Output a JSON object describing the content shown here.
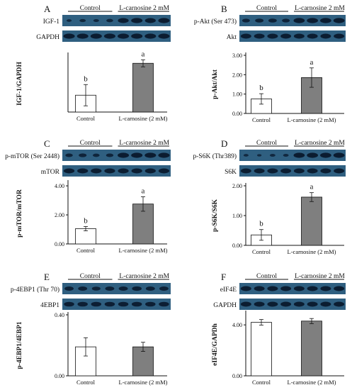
{
  "figure": {
    "group_labels": [
      "Control",
      "L-carnosine 2 mM"
    ],
    "colors": {
      "control_bar": "#ffffff",
      "treatment_bar": "#7f7f7f",
      "blot_bg": "#2f5f80",
      "blot_band": "#0b1c30"
    }
  },
  "panels": [
    {
      "letter": "A",
      "target_label": "IGF-1",
      "reference_label": "GAPDH"
    },
    {
      "letter": "B",
      "target_label": "p-Akt (Ser 473)",
      "reference_label": "Akt"
    },
    {
      "letter": "C",
      "target_label": "p-mTOR (Ser 2448)",
      "reference_label": "mTOR"
    },
    {
      "letter": "D",
      "target_label": "p-S6K (Thr389)",
      "reference_label": "S6K"
    },
    {
      "letter": "E",
      "target_label": "p-4EBP1 (Thr 70)",
      "reference_label": "4EBP1"
    },
    {
      "letter": "F",
      "target_label": "eIF4E",
      "reference_label": "GAPDH"
    }
  ],
  "chart_data": [
    {
      "panel": "A",
      "type": "bar",
      "categories": [
        "Control",
        "L-carnosine (2 mM)"
      ],
      "values": [
        0.95,
        2.75
      ],
      "errors": [
        0.6,
        0.2
      ],
      "significance": [
        "b",
        "a"
      ],
      "ylabel": "IGF-1/GAPDH",
      "ylim": [
        0,
        3.2
      ],
      "yticks": [],
      "ytick_labels": []
    },
    {
      "panel": "B",
      "type": "bar",
      "categories": [
        "Control",
        "L-carnosine (2 mM)"
      ],
      "values": [
        0.75,
        1.85
      ],
      "errors": [
        0.27,
        0.5
      ],
      "significance": [
        "b",
        "a"
      ],
      "ylabel": "p-Akt/Akt",
      "ylim": [
        0,
        3.0
      ],
      "yticks": [
        0,
        1,
        2,
        3
      ],
      "ytick_labels": [
        "0.00",
        "1.00",
        "2.00",
        "3.00"
      ]
    },
    {
      "panel": "C",
      "type": "bar",
      "categories": [
        "Control",
        "L-carnosine (2 mM)"
      ],
      "values": [
        1.05,
        2.75
      ],
      "errors": [
        0.15,
        0.5
      ],
      "significance": [
        "b",
        "a"
      ],
      "ylabel": "p-mTOR/mTOR",
      "ylim": [
        0,
        4.2
      ],
      "yticks": [
        0,
        2,
        4
      ],
      "ytick_labels": [
        "0.00",
        "2.00",
        "4.00"
      ]
    },
    {
      "panel": "D",
      "type": "bar",
      "categories": [
        "Control",
        "L-carnosine (2 mM)"
      ],
      "values": [
        0.35,
        1.62
      ],
      "errors": [
        0.18,
        0.15
      ],
      "significance": [
        "b",
        "a"
      ],
      "ylabel": "p-S6K/S6K",
      "ylim": [
        0,
        2.0
      ],
      "yticks": [
        0,
        1,
        2
      ],
      "ytick_labels": [
        "0.00",
        "1.00",
        "2.00"
      ]
    },
    {
      "panel": "E",
      "type": "bar",
      "categories": [
        "Control",
        "L-carnosine (2 mM)"
      ],
      "values": [
        0.19,
        0.19
      ],
      "errors": [
        0.06,
        0.03
      ],
      "significance": [],
      "ylabel": "p-4EBP1/4EBP1",
      "ylim": [
        0,
        0.4
      ],
      "yticks": [
        0,
        0.4
      ],
      "ytick_labels": [
        "0.00",
        "0.40"
      ]
    },
    {
      "panel": "F",
      "type": "bar",
      "categories": [
        "Control",
        "L-carnosine (2 mM)"
      ],
      "values": [
        4.2,
        4.3
      ],
      "errors": [
        0.22,
        0.2
      ],
      "significance": [],
      "ylabel": "eIF4E/GAPDh",
      "ylim": [
        0,
        4.9
      ],
      "yticks": [
        0,
        4
      ],
      "ytick_labels": [
        "0.00",
        "4.00"
      ]
    }
  ]
}
